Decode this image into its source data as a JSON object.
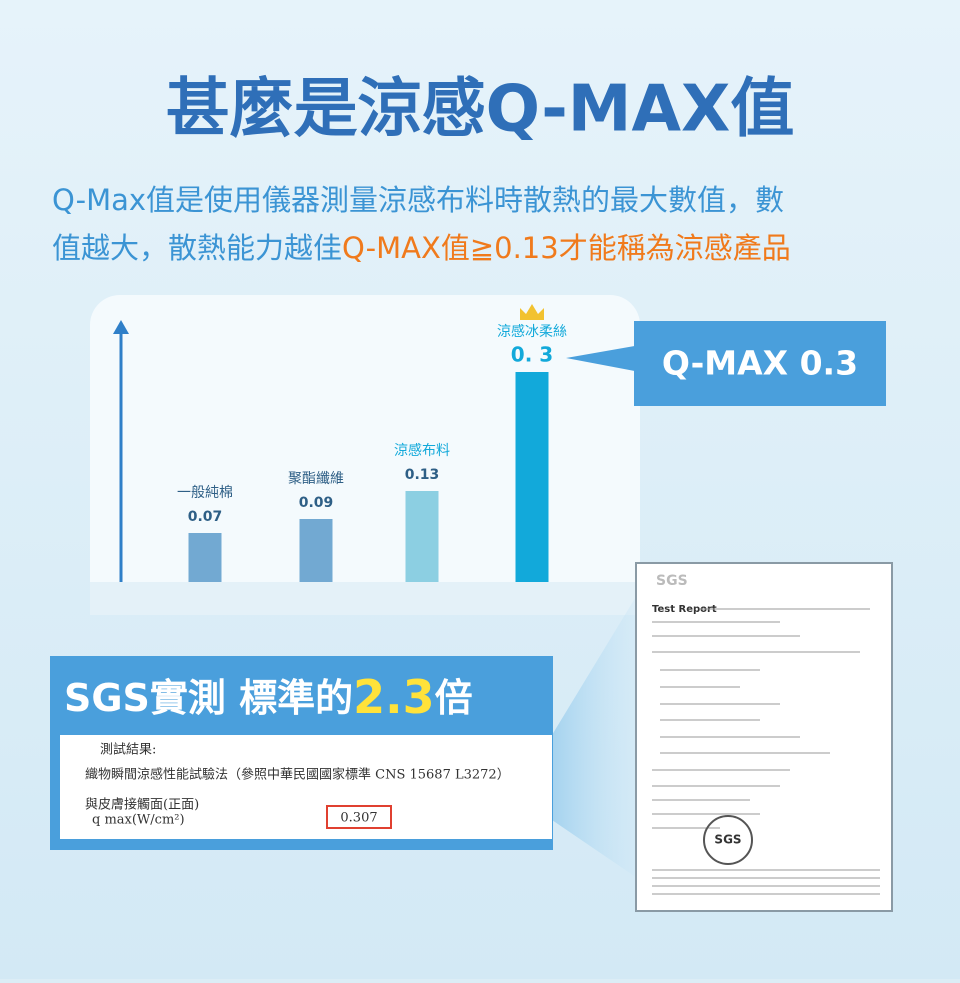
{
  "headline": "甚麼是涼感Q-MAX值",
  "subtitle": {
    "line1": "Q-Max值是使用儀器測量涼感布料時散熱的最大數值，數",
    "line2a": "值越大，散熱能力越佳",
    "line2b": "Q-MAX值≧0.13才能稱為涼感產品"
  },
  "chart_data": {
    "type": "bar",
    "categories": [
      "一般純棉",
      "聚酯纖維",
      "涼感布料",
      "涼感冰柔絲"
    ],
    "values": [
      0.07,
      0.09,
      0.13,
      0.3
    ],
    "value_labels": [
      "0.07",
      "0.09",
      "0.13",
      "0. 3"
    ],
    "colors": [
      "#72a9d2",
      "#72a9d2",
      "#8ccfe2",
      "#12a9da"
    ],
    "ylim": [
      0,
      0.3
    ]
  },
  "callout": "Q-MAX  0.3",
  "banner": {
    "prefix": "SGS實測  標準的",
    "number": "2.3",
    "suffix": "倍"
  },
  "excerpt": {
    "heading": "測試結果:",
    "method": "織物瞬間涼感性能試驗法（參照中華民國國家標準 CNS 15687 L3272）",
    "side": "與皮膚接觸面(正面)",
    "unit": "q max(W/cm²)",
    "result": "0.307"
  },
  "report": {
    "logo": "SGS",
    "title": "Test Report",
    "stamp": "SGS"
  }
}
